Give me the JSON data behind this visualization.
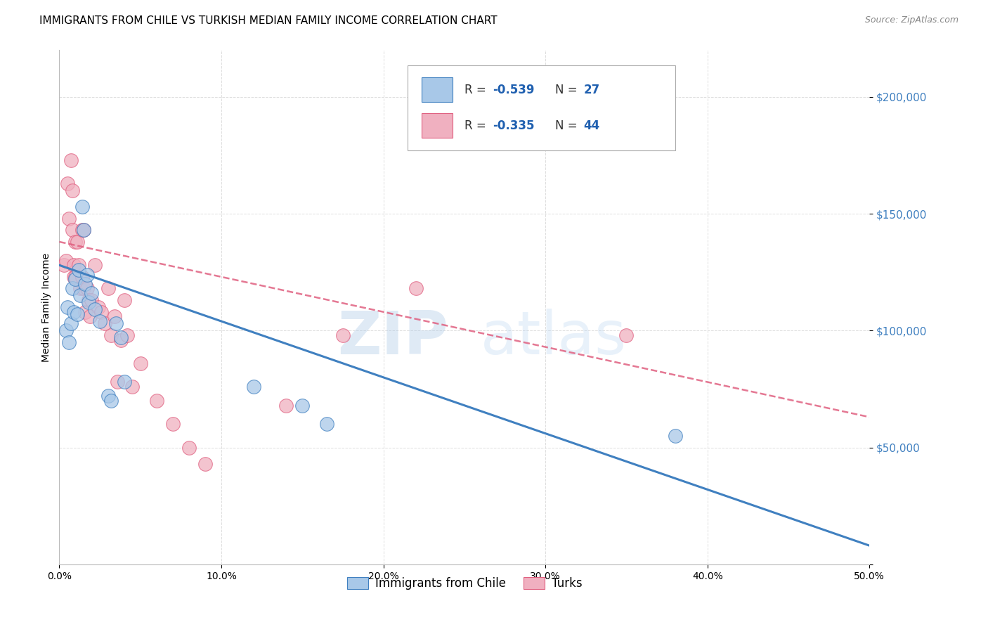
{
  "title": "IMMIGRANTS FROM CHILE VS TURKISH MEDIAN FAMILY INCOME CORRELATION CHART",
  "source": "Source: ZipAtlas.com",
  "ylabel": "Median Family Income",
  "yticks": [
    0,
    50000,
    100000,
    150000,
    200000
  ],
  "ytick_labels": [
    "",
    "$50,000",
    "$100,000",
    "$150,000",
    "$200,000"
  ],
  "xlim": [
    0.0,
    0.5
  ],
  "ylim": [
    0,
    220000
  ],
  "watermark_zip": "ZIP",
  "watermark_atlas": "atlas",
  "legend_label1": "Immigrants from Chile",
  "legend_label2": "Turks",
  "chile_color": "#a8c8e8",
  "turks_color": "#f0b0c0",
  "chile_line_color": "#4080c0",
  "turks_line_color": "#e06080",
  "chile_scatter_x": [
    0.004,
    0.005,
    0.006,
    0.007,
    0.008,
    0.009,
    0.01,
    0.011,
    0.012,
    0.013,
    0.014,
    0.015,
    0.016,
    0.017,
    0.018,
    0.02,
    0.022,
    0.025,
    0.03,
    0.032,
    0.035,
    0.038,
    0.04,
    0.12,
    0.15,
    0.165,
    0.38
  ],
  "chile_scatter_y": [
    100000,
    110000,
    95000,
    103000,
    118000,
    108000,
    122000,
    107000,
    126000,
    115000,
    153000,
    143000,
    120000,
    124000,
    112000,
    116000,
    109000,
    104000,
    72000,
    70000,
    103000,
    97000,
    78000,
    76000,
    68000,
    60000,
    55000
  ],
  "turks_scatter_x": [
    0.003,
    0.004,
    0.005,
    0.006,
    0.007,
    0.008,
    0.008,
    0.009,
    0.009,
    0.01,
    0.01,
    0.011,
    0.012,
    0.013,
    0.014,
    0.014,
    0.015,
    0.015,
    0.016,
    0.017,
    0.018,
    0.019,
    0.02,
    0.022,
    0.024,
    0.026,
    0.028,
    0.03,
    0.032,
    0.034,
    0.036,
    0.038,
    0.04,
    0.042,
    0.045,
    0.05,
    0.06,
    0.07,
    0.08,
    0.09,
    0.14,
    0.175,
    0.22,
    0.35
  ],
  "turks_scatter_y": [
    128000,
    130000,
    163000,
    148000,
    173000,
    160000,
    143000,
    128000,
    123000,
    138000,
    123000,
    138000,
    128000,
    118000,
    143000,
    123000,
    118000,
    143000,
    108000,
    118000,
    113000,
    106000,
    113000,
    128000,
    110000,
    108000,
    103000,
    118000,
    98000,
    106000,
    78000,
    96000,
    113000,
    98000,
    76000,
    86000,
    70000,
    60000,
    50000,
    43000,
    68000,
    98000,
    118000,
    98000
  ],
  "chile_trend_x": [
    0.0,
    0.5
  ],
  "chile_trend_y": [
    128000,
    8000
  ],
  "turks_trend_x": [
    0.0,
    0.5
  ],
  "turks_trend_y": [
    138000,
    63000
  ],
  "background_color": "#ffffff",
  "grid_color": "#dddddd",
  "title_fontsize": 11,
  "axis_label_fontsize": 10,
  "tick_fontsize": 10,
  "source_fontsize": 9
}
